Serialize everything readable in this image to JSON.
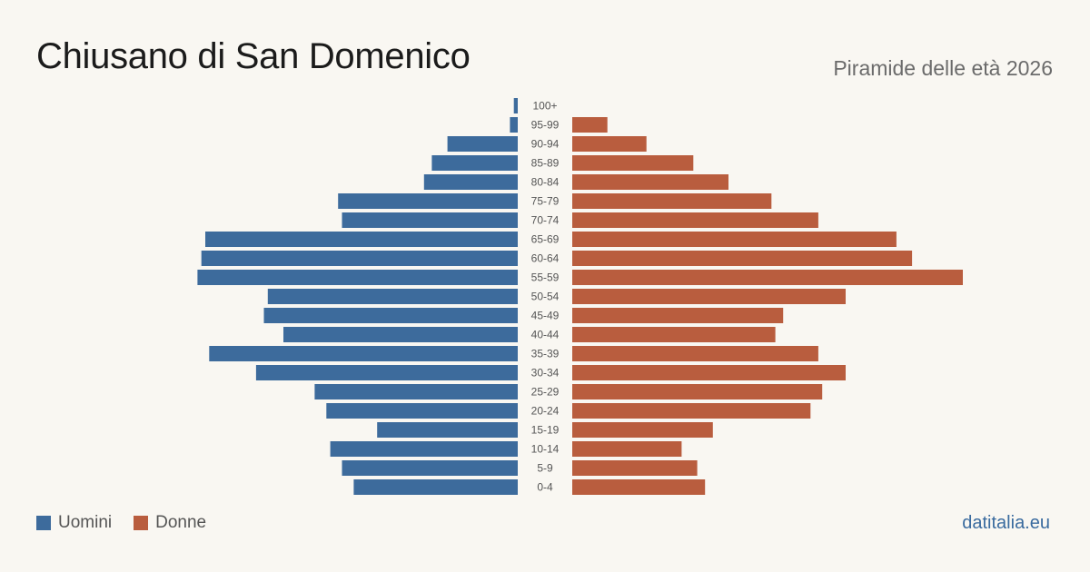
{
  "header": {
    "title": "Chiusano di San Domenico",
    "subtitle": "Piramide delle età 2026"
  },
  "legend": {
    "men_label": "Uomini",
    "women_label": "Donne"
  },
  "brand": "datitalia.eu",
  "colors": {
    "men": "#3d6b9c",
    "women": "#b95d3e",
    "background": "#f9f7f2"
  },
  "chart_data": {
    "type": "bar",
    "orientation": "horizontal-pyramid",
    "title": "Chiusano di San Domenico",
    "subtitle": "Piramide delle età 2026",
    "categories": [
      "100+",
      "95-99",
      "90-94",
      "85-89",
      "80-84",
      "75-79",
      "70-74",
      "65-69",
      "60-64",
      "55-59",
      "50-54",
      "45-49",
      "40-44",
      "35-39",
      "30-34",
      "25-29",
      "20-24",
      "15-19",
      "10-14",
      "5-9",
      "0-4"
    ],
    "series": [
      {
        "name": "Uomini",
        "color": "#3d6b9c",
        "values": [
          1,
          2,
          18,
          22,
          24,
          46,
          45,
          80,
          81,
          82,
          64,
          65,
          60,
          79,
          67,
          52,
          49,
          36,
          48,
          45,
          42
        ]
      },
      {
        "name": "Donne",
        "color": "#b95d3e",
        "values": [
          0,
          9,
          19,
          31,
          40,
          51,
          63,
          83,
          87,
          100,
          70,
          54,
          52,
          63,
          70,
          64,
          61,
          36,
          28,
          32,
          34
        ]
      }
    ],
    "grid": false,
    "legend_position": "bottom-left"
  }
}
